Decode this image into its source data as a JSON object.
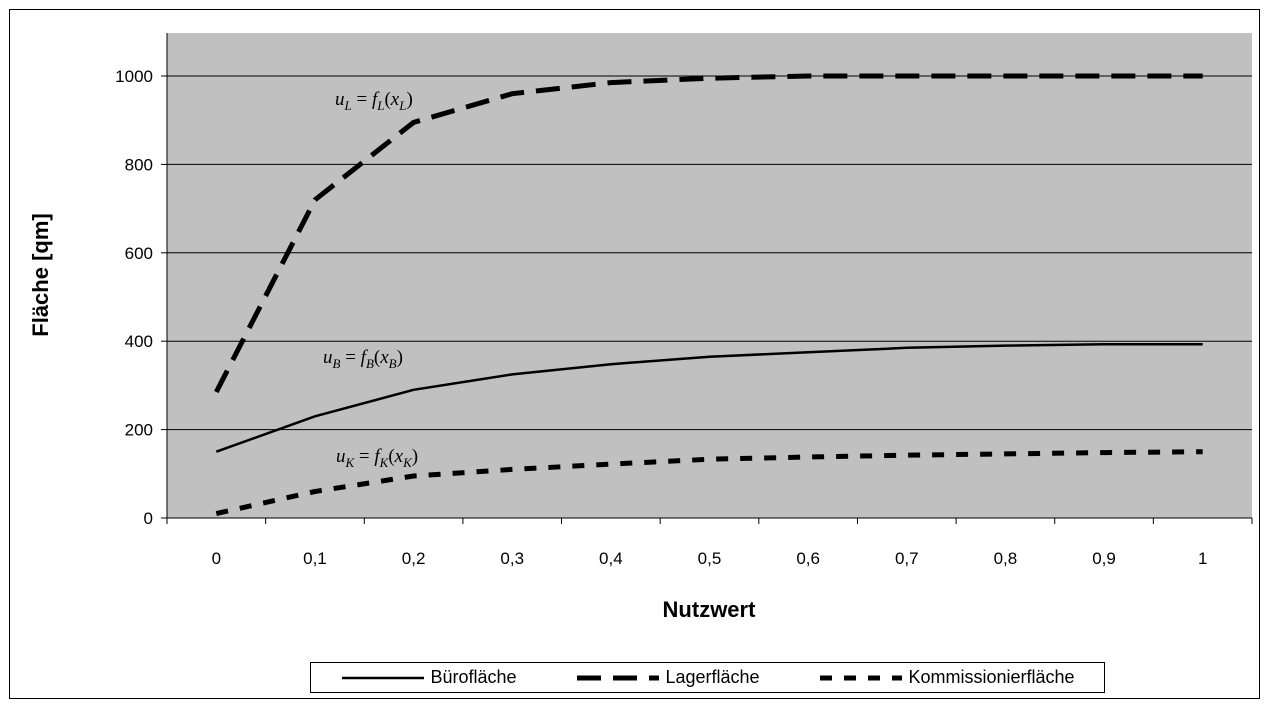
{
  "chart_data": {
    "type": "line",
    "title": "",
    "xlabel": "Nutzwert",
    "ylabel": "Fläche [qm]",
    "categories": [
      "0",
      "0,1",
      "0,2",
      "0,3",
      "0,4",
      "0,5",
      "0,6",
      "0,7",
      "0,8",
      "0,9",
      "1"
    ],
    "x": [
      0,
      0.1,
      0.2,
      0.3,
      0.4,
      0.5,
      0.6,
      0.7,
      0.8,
      0.9,
      1.0
    ],
    "ylim": [
      0,
      1000
    ],
    "yticks": [
      0,
      200,
      400,
      600,
      800,
      1000
    ],
    "grid": "horizontal",
    "legend_position": "bottom",
    "series": [
      {
        "name": "Bürofläche",
        "style": "solid",
        "color": "#000000",
        "values": [
          150,
          230,
          290,
          325,
          348,
          365,
          375,
          385,
          390,
          393,
          393
        ]
      },
      {
        "name": "Lagerfläche",
        "style": "long-dash",
        "color": "#000000",
        "values": [
          285,
          720,
          895,
          960,
          985,
          995,
          1000,
          1000,
          1000,
          1000,
          1000
        ]
      },
      {
        "name": "Kommissionierfläche",
        "style": "short-dash",
        "color": "#000000",
        "values": [
          10,
          60,
          95,
          110,
          122,
          133,
          138,
          142,
          145,
          148,
          150
        ]
      }
    ],
    "annotations": [
      {
        "series": "Lagerfläche",
        "u": "u",
        "sub": "L",
        "f": "f",
        "x": "x"
      },
      {
        "series": "Bürofläche",
        "u": "u",
        "sub": "B",
        "f": "f",
        "x": "x"
      },
      {
        "series": "Kommissionierfläche",
        "u": "u",
        "sub": "K",
        "f": "f",
        "x": "x"
      }
    ]
  },
  "colors": {
    "plot_background": "#c0c0c0",
    "grid": "#000000",
    "line": "#000000"
  }
}
